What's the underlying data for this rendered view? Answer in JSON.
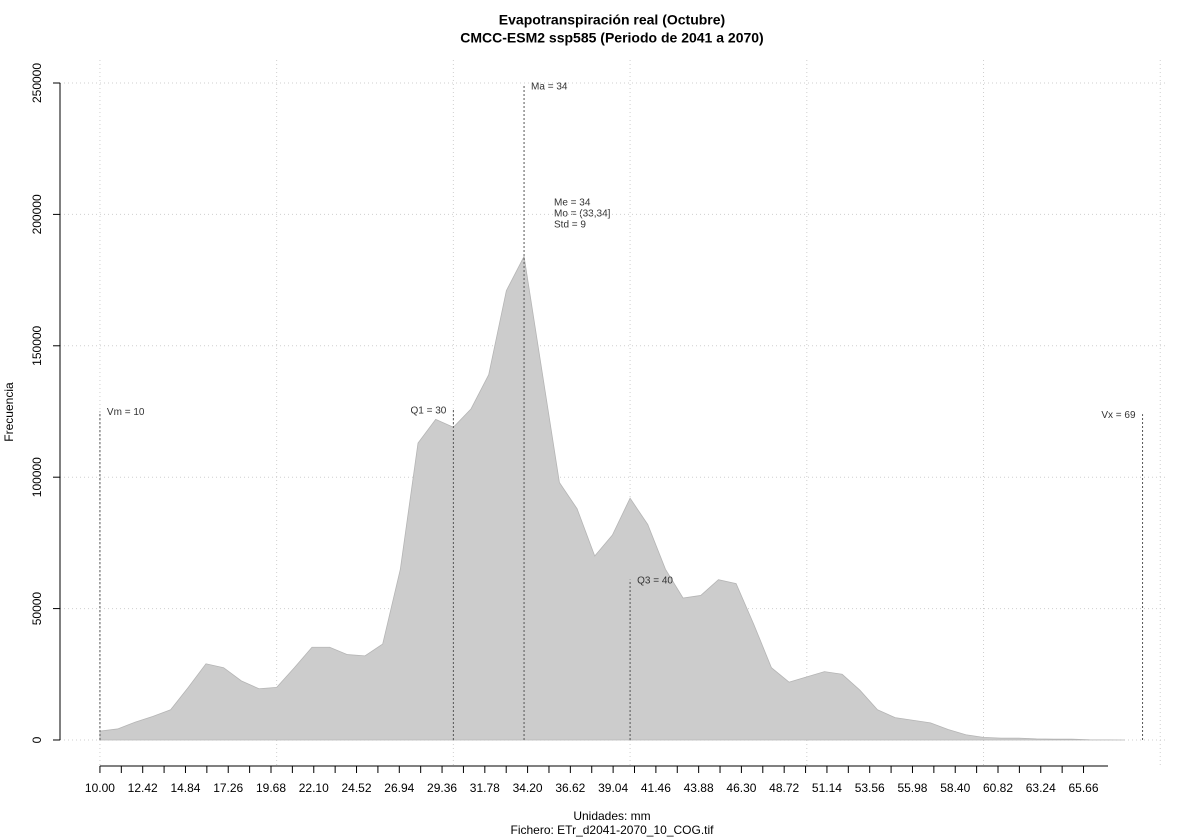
{
  "chart_data": {
    "type": "area",
    "title": "Evapotranspiración real (Octubre)",
    "subtitle": "CMCC-ESM2 ssp585 (Periodo de 2041 a 2070)",
    "xlabel": "Unidades: mm",
    "ylabel": "Frecuencia",
    "caption": "Fichero: ETr_d2041-2070_10_COG.tif",
    "color": "#cccccc",
    "x": [
      10,
      11,
      12,
      13,
      14,
      15,
      16,
      17,
      18,
      19,
      20,
      21,
      22,
      23,
      24,
      25,
      26,
      27,
      28,
      29,
      30,
      31,
      32,
      33,
      34,
      35,
      36,
      37,
      38,
      39,
      40,
      41,
      42,
      43,
      44,
      45,
      46,
      47,
      48,
      49,
      50,
      51,
      52,
      53,
      54,
      55,
      56,
      57,
      58,
      59,
      60,
      61,
      62,
      63,
      64,
      65,
      66,
      67,
      68
    ],
    "values": [
      3400,
      4200,
      6800,
      9000,
      11500,
      20000,
      29000,
      27500,
      22500,
      19500,
      20000,
      27500,
      35300,
      35300,
      32500,
      32000,
      36500,
      65000,
      113000,
      122000,
      119000,
      126000,
      139000,
      171000,
      184000,
      141000,
      98000,
      88000,
      70000,
      78000,
      92000,
      82000,
      65000,
      54000,
      55000,
      61000,
      59500,
      44000,
      27500,
      22000,
      24000,
      26000,
      25000,
      19000,
      11500,
      8500,
      7500,
      6500,
      4000,
      2000,
      1000,
      700,
      700,
      400,
      300,
      300,
      100,
      50,
      0
    ],
    "xlim": [
      7.74,
      70.44
    ],
    "ylim": [
      -9900,
      258750
    ],
    "xticks": [
      {
        "value": 10,
        "label": "10.00"
      },
      12.42,
      14.84,
      17.26,
      19.68,
      {
        "value": 22.1,
        "label": "22.10"
      },
      24.52,
      26.94,
      29.36,
      31.78,
      {
        "value": 34.2,
        "label": "34.20"
      },
      36.62,
      39.04,
      41.46,
      43.88,
      {
        "value": 46.3,
        "label": "46.30"
      },
      48.72,
      51.14,
      53.56,
      55.98,
      {
        "value": 58.4,
        "label": "58.40"
      },
      60.82,
      63.24,
      65.66
    ],
    "xminor_ticks": [
      11.21,
      13.63,
      16.05,
      18.47,
      20.89,
      23.31,
      25.73,
      28.15,
      30.57,
      32.99,
      35.41,
      37.83,
      40.25,
      42.67,
      45.09,
      47.51,
      49.93,
      52.35,
      54.77,
      57.19,
      59.61,
      62.03,
      64.45
    ],
    "xgrid": [
      10,
      20,
      30,
      40,
      50,
      60,
      70
    ],
    "yticks": [
      0,
      50000,
      100000,
      150000,
      200000,
      250000
    ],
    "grid": true,
    "annotations": [
      {
        "text": "Vm = 10",
        "x": 10,
        "y": 125000
      },
      {
        "text": "Q1 = 30",
        "x": 30,
        "y": 125600
      },
      {
        "text": "Ma = 34",
        "x": 34,
        "y": 249000
      },
      {
        "text": "Q3 = 40",
        "x": 40,
        "y": 61000
      },
      {
        "text": "Vx = 69",
        "x": 69,
        "y": 124000
      }
    ],
    "stats": [
      "Me = 34",
      "Mo = (33,34]",
      "Std = 9"
    ]
  }
}
